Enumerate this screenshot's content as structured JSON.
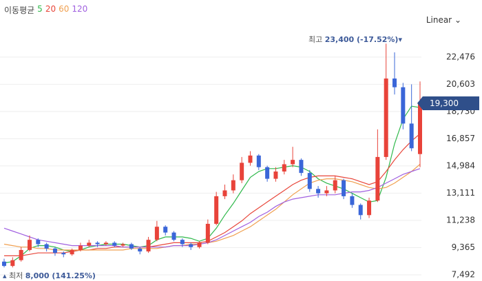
{
  "chart_data": {
    "type": "candlestick",
    "legend_title": "이동평균",
    "scale_label": "Linear",
    "ylim": [
      7065,
      24270
    ],
    "yticks": [
      {
        "value": 7492,
        "label": "7,492"
      },
      {
        "value": 9365,
        "label": "9,365"
      },
      {
        "value": 11238,
        "label": "11,238"
      },
      {
        "value": 13111,
        "label": "13,111"
      },
      {
        "value": 14984,
        "label": "14,984"
      },
      {
        "value": 16857,
        "label": "16,857"
      },
      {
        "value": 18730,
        "label": "18,730"
      },
      {
        "value": 20603,
        "label": "20,603"
      },
      {
        "value": 22476,
        "label": "22,476"
      }
    ],
    "grid": true,
    "up_color": "#e8433a",
    "down_color": "#3a66d8",
    "open": [
      8400,
      8100,
      8500,
      9200,
      9900,
      9600,
      9300,
      9000,
      8900,
      9200,
      9500,
      9700,
      9600,
      9700,
      9500,
      9600,
      9300,
      9100,
      9900,
      10800,
      10400,
      9900,
      9600,
      9400,
      9700,
      11000,
      12900,
      13300,
      14000,
      15200,
      15700,
      14900,
      14100,
      14600,
      15100,
      15400,
      14500,
      13400,
      13100,
      13300,
      14000,
      12900,
      12300,
      11600,
      12600,
      15600,
      21000,
      20400,
      17900,
      15800
    ],
    "high": [
      8600,
      8700,
      9400,
      10200,
      10000,
      9700,
      9400,
      9100,
      9300,
      9700,
      9900,
      9800,
      9800,
      9800,
      9700,
      9700,
      9400,
      10100,
      11200,
      10900,
      10500,
      10000,
      9700,
      9800,
      11300,
      13200,
      13700,
      14400,
      15600,
      16000,
      15800,
      15000,
      14900,
      15400,
      16300,
      15500,
      14700,
      13600,
      13600,
      14300,
      14100,
      13100,
      12400,
      12800,
      17500,
      23400,
      22800,
      20700,
      20600,
      20800
    ],
    "low": [
      8000,
      8000,
      8400,
      9100,
      9400,
      9100,
      8800,
      8700,
      8800,
      9100,
      9400,
      9400,
      9500,
      9400,
      9400,
      9200,
      8900,
      9000,
      9800,
      10200,
      9800,
      9400,
      9200,
      9300,
      9600,
      10900,
      12700,
      13100,
      13800,
      15000,
      14700,
      13900,
      13900,
      14400,
      14900,
      14300,
      13200,
      12800,
      12900,
      13100,
      12700,
      12100,
      11300,
      11400,
      12500,
      15400,
      19900,
      17500,
      16000,
      14900
    ],
    "close": [
      8100,
      8500,
      9200,
      9900,
      9600,
      9300,
      9000,
      8900,
      9200,
      9500,
      9700,
      9600,
      9700,
      9500,
      9600,
      9300,
      9100,
      9900,
      10800,
      10400,
      9900,
      9600,
      9400,
      9700,
      11000,
      12900,
      13300,
      14000,
      15200,
      15700,
      14900,
      14100,
      14600,
      15100,
      15400,
      14500,
      13400,
      13100,
      13300,
      14000,
      12900,
      12300,
      11600,
      12600,
      15600,
      21000,
      20400,
      17900,
      16200,
      19300
    ],
    "series": [
      {
        "name": "5",
        "color": "#2eb84a",
        "values": [
          8300,
          8400,
          8800,
          9300,
          9500,
          9500,
          9400,
          9200,
          9100,
          9200,
          9400,
          9500,
          9600,
          9600,
          9600,
          9500,
          9400,
          9500,
          9900,
          10100,
          10100,
          10100,
          10000,
          9800,
          10000,
          10700,
          11600,
          12400,
          13300,
          14200,
          14600,
          14800,
          14800,
          14900,
          15000,
          14900,
          14600,
          14100,
          13800,
          13600,
          13400,
          13100,
          12800,
          12500,
          12600,
          14200,
          16500,
          18200,
          19100,
          19000
        ]
      },
      {
        "name": "20",
        "color": "#e8463a",
        "values": [
          8800,
          8800,
          8800,
          8900,
          9000,
          9000,
          9000,
          9000,
          9100,
          9200,
          9200,
          9300,
          9300,
          9400,
          9400,
          9400,
          9400,
          9400,
          9500,
          9600,
          9700,
          9700,
          9700,
          9700,
          9800,
          10100,
          10400,
          10800,
          11200,
          11700,
          12100,
          12500,
          12900,
          13300,
          13700,
          14000,
          14200,
          14300,
          14300,
          14300,
          14200,
          14100,
          13900,
          13700,
          13900,
          14600,
          15400,
          16100,
          16700,
          17200
        ]
      },
      {
        "name": "60",
        "color": "#f0a050",
        "values": [
          9600,
          9500,
          9400,
          9400,
          9300,
          9300,
          9200,
          9200,
          9200,
          9200,
          9200,
          9200,
          9200,
          9200,
          9200,
          9300,
          9300,
          9300,
          9300,
          9400,
          9500,
          9500,
          9600,
          9600,
          9700,
          9800,
          10000,
          10200,
          10500,
          10800,
          11200,
          11600,
          12000,
          12500,
          13000,
          13400,
          13800,
          14000,
          14100,
          14100,
          14000,
          13900,
          13700,
          13500,
          13400,
          13500,
          13800,
          14200,
          14600,
          15100
        ]
      },
      {
        "name": "120",
        "color": "#a060e0",
        "values": [
          10700,
          10500,
          10300,
          10100,
          9900,
          9800,
          9700,
          9600,
          9500,
          9500,
          9500,
          9500,
          9500,
          9500,
          9400,
          9400,
          9400,
          9400,
          9400,
          9400,
          9500,
          9500,
          9500,
          9600,
          9700,
          9900,
          10200,
          10500,
          10800,
          11100,
          11500,
          11800,
          12200,
          12500,
          12700,
          12800,
          12900,
          13000,
          13000,
          13000,
          13100,
          13200,
          13200,
          13300,
          13500,
          13800,
          14100,
          14400,
          14600,
          14800
        ]
      }
    ],
    "high_annotation": {
      "label": "최고",
      "value": 23400,
      "text": "23,400 (-17.52%)"
    },
    "low_annotation": {
      "label": "최저",
      "value": 8000,
      "text": "8,000 (141.25%)"
    },
    "last_price": {
      "value": 19300,
      "label": "19,300"
    }
  }
}
